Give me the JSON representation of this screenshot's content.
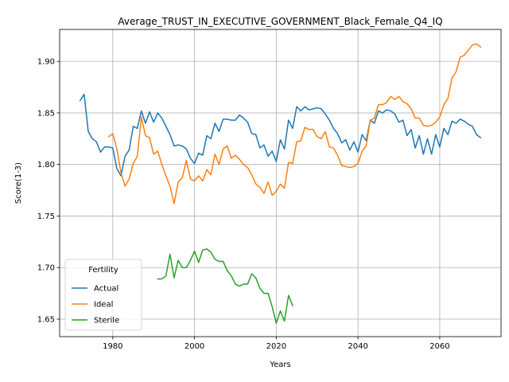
{
  "chart_data": {
    "type": "line",
    "title": "Average_TRUST_IN_EXECUTIVE_GOVERNMENT_Black_Female_Q4_IQ",
    "xlabel": "Years",
    "ylabel": "Score(1-3)",
    "xlim": [
      1967,
      2075
    ],
    "ylim": [
      1.633,
      1.931
    ],
    "xticks": [
      1980,
      2000,
      2020,
      2040,
      2060
    ],
    "yticks": [
      1.65,
      1.7,
      1.75,
      1.8,
      1.85,
      1.9
    ],
    "xtick_labels": [
      "1980",
      "2000",
      "2020",
      "2040",
      "2060"
    ],
    "ytick_labels": [
      "1.65",
      "1.70",
      "1.75",
      "1.80",
      "1.85",
      "1.90"
    ],
    "grid": true,
    "legend": {
      "title": "Fertility",
      "position": "lower-left"
    },
    "series": [
      {
        "name": "Actual",
        "color": "#1f77b4",
        "x": [
          1972,
          1973,
          1974,
          1975,
          1976,
          1977,
          1978,
          1979,
          1980,
          1981,
          1982,
          1983,
          1984,
          1985,
          1986,
          1987,
          1988,
          1989,
          1990,
          1991,
          1992,
          1993,
          1994,
          1995,
          1996,
          1997,
          1998,
          1999,
          2000,
          2001,
          2002,
          2003,
          2004,
          2005,
          2006,
          2007,
          2008,
          2009,
          2010,
          2011,
          2012,
          2013,
          2014,
          2015,
          2016,
          2017,
          2018,
          2019,
          2020,
          2021,
          2022,
          2023,
          2024,
          2025,
          2026,
          2027,
          2028,
          2029,
          2030,
          2031,
          2032,
          2033,
          2034,
          2035,
          2036,
          2037,
          2038,
          2039,
          2040,
          2041,
          2042,
          2043,
          2044,
          2045,
          2046,
          2047,
          2048,
          2049,
          2050,
          2051,
          2052,
          2053,
          2054,
          2055,
          2056,
          2057,
          2058,
          2059,
          2060,
          2061,
          2062,
          2063,
          2064,
          2065,
          2066,
          2067,
          2068,
          2069,
          2070
        ],
        "values": [
          1.862,
          1.868,
          1.832,
          1.825,
          1.822,
          1.812,
          1.817,
          1.817,
          1.816,
          1.796,
          1.789,
          1.808,
          1.814,
          1.837,
          1.835,
          1.852,
          1.84,
          1.851,
          1.841,
          1.85,
          1.845,
          1.837,
          1.829,
          1.818,
          1.819,
          1.818,
          1.815,
          1.806,
          1.801,
          1.811,
          1.809,
          1.828,
          1.825,
          1.84,
          1.832,
          1.844,
          1.844,
          1.843,
          1.843,
          1.848,
          1.845,
          1.841,
          1.83,
          1.829,
          1.816,
          1.819,
          1.808,
          1.813,
          1.803,
          1.824,
          1.815,
          1.843,
          1.835,
          1.856,
          1.852,
          1.856,
          1.853,
          1.854,
          1.855,
          1.854,
          1.849,
          1.843,
          1.835,
          1.83,
          1.821,
          1.824,
          1.814,
          1.822,
          1.812,
          1.829,
          1.823,
          1.843,
          1.84,
          1.852,
          1.85,
          1.853,
          1.852,
          1.849,
          1.841,
          1.843,
          1.828,
          1.834,
          1.816,
          1.828,
          1.81,
          1.825,
          1.81,
          1.829,
          1.817,
          1.835,
          1.829,
          1.842,
          1.84,
          1.844,
          1.842,
          1.839,
          1.837,
          1.829,
          1.826
        ]
      },
      {
        "name": "Ideal",
        "color": "#ff7f0e",
        "x": [
          1979,
          1980,
          1981,
          1982,
          1983,
          1984,
          1985,
          1986,
          1987,
          1988,
          1989,
          1990,
          1991,
          1992,
          1993,
          1994,
          1995,
          1996,
          1997,
          1998,
          1999,
          2000,
          2001,
          2002,
          2003,
          2004,
          2005,
          2006,
          2007,
          2008,
          2009,
          2010,
          2011,
          2012,
          2013,
          2014,
          2015,
          2016,
          2017,
          2018,
          2019,
          2020,
          2021,
          2022,
          2023,
          2024,
          2025,
          2026,
          2027,
          2028,
          2029,
          2030,
          2031,
          2032,
          2033,
          2034,
          2035,
          2036,
          2037,
          2038,
          2039,
          2040,
          2041,
          2042,
          2043,
          2044,
          2045,
          2046,
          2047,
          2048,
          2049,
          2050,
          2051,
          2052,
          2053,
          2054,
          2055,
          2056,
          2057,
          2058,
          2059,
          2060,
          2061,
          2062,
          2063,
          2064,
          2065,
          2066,
          2067,
          2068,
          2069,
          2070
        ],
        "values": [
          1.827,
          1.83,
          1.815,
          1.792,
          1.779,
          1.786,
          1.801,
          1.808,
          1.846,
          1.828,
          1.826,
          1.81,
          1.813,
          1.8,
          1.789,
          1.779,
          1.762,
          1.783,
          1.787,
          1.804,
          1.786,
          1.784,
          1.789,
          1.784,
          1.795,
          1.79,
          1.81,
          1.8,
          1.815,
          1.818,
          1.806,
          1.809,
          1.805,
          1.8,
          1.797,
          1.79,
          1.781,
          1.778,
          1.772,
          1.783,
          1.77,
          1.774,
          1.781,
          1.777,
          1.802,
          1.801,
          1.822,
          1.823,
          1.836,
          1.834,
          1.834,
          1.827,
          1.825,
          1.832,
          1.817,
          1.816,
          1.809,
          1.799,
          1.798,
          1.797,
          1.798,
          1.801,
          1.813,
          1.818,
          1.843,
          1.845,
          1.858,
          1.858,
          1.86,
          1.866,
          1.863,
          1.866,
          1.861,
          1.859,
          1.854,
          1.845,
          1.845,
          1.838,
          1.837,
          1.838,
          1.841,
          1.846,
          1.858,
          1.864,
          1.884,
          1.89,
          1.904,
          1.906,
          1.911,
          1.916,
          1.917,
          1.914
        ]
      },
      {
        "name": "Sterile",
        "color": "#2ca02c",
        "x": [
          1991,
          1992,
          1993,
          1994,
          1995,
          1996,
          1997,
          1998,
          1999,
          2000,
          2001,
          2002,
          2003,
          2004,
          2005,
          2006,
          2007,
          2008,
          2009,
          2010,
          2011,
          2012,
          2013,
          2014,
          2015,
          2016,
          2017,
          2018,
          2019,
          2020,
          2021,
          2022,
          2023,
          2024
        ],
        "values": [
          1.689,
          1.689,
          1.692,
          1.713,
          1.69,
          1.707,
          1.7,
          1.7,
          1.707,
          1.716,
          1.705,
          1.717,
          1.718,
          1.715,
          1.708,
          1.706,
          1.706,
          1.697,
          1.692,
          1.684,
          1.682,
          1.684,
          1.684,
          1.694,
          1.69,
          1.68,
          1.675,
          1.675,
          1.662,
          1.646,
          1.658,
          1.648,
          1.673,
          1.663
        ]
      }
    ]
  }
}
